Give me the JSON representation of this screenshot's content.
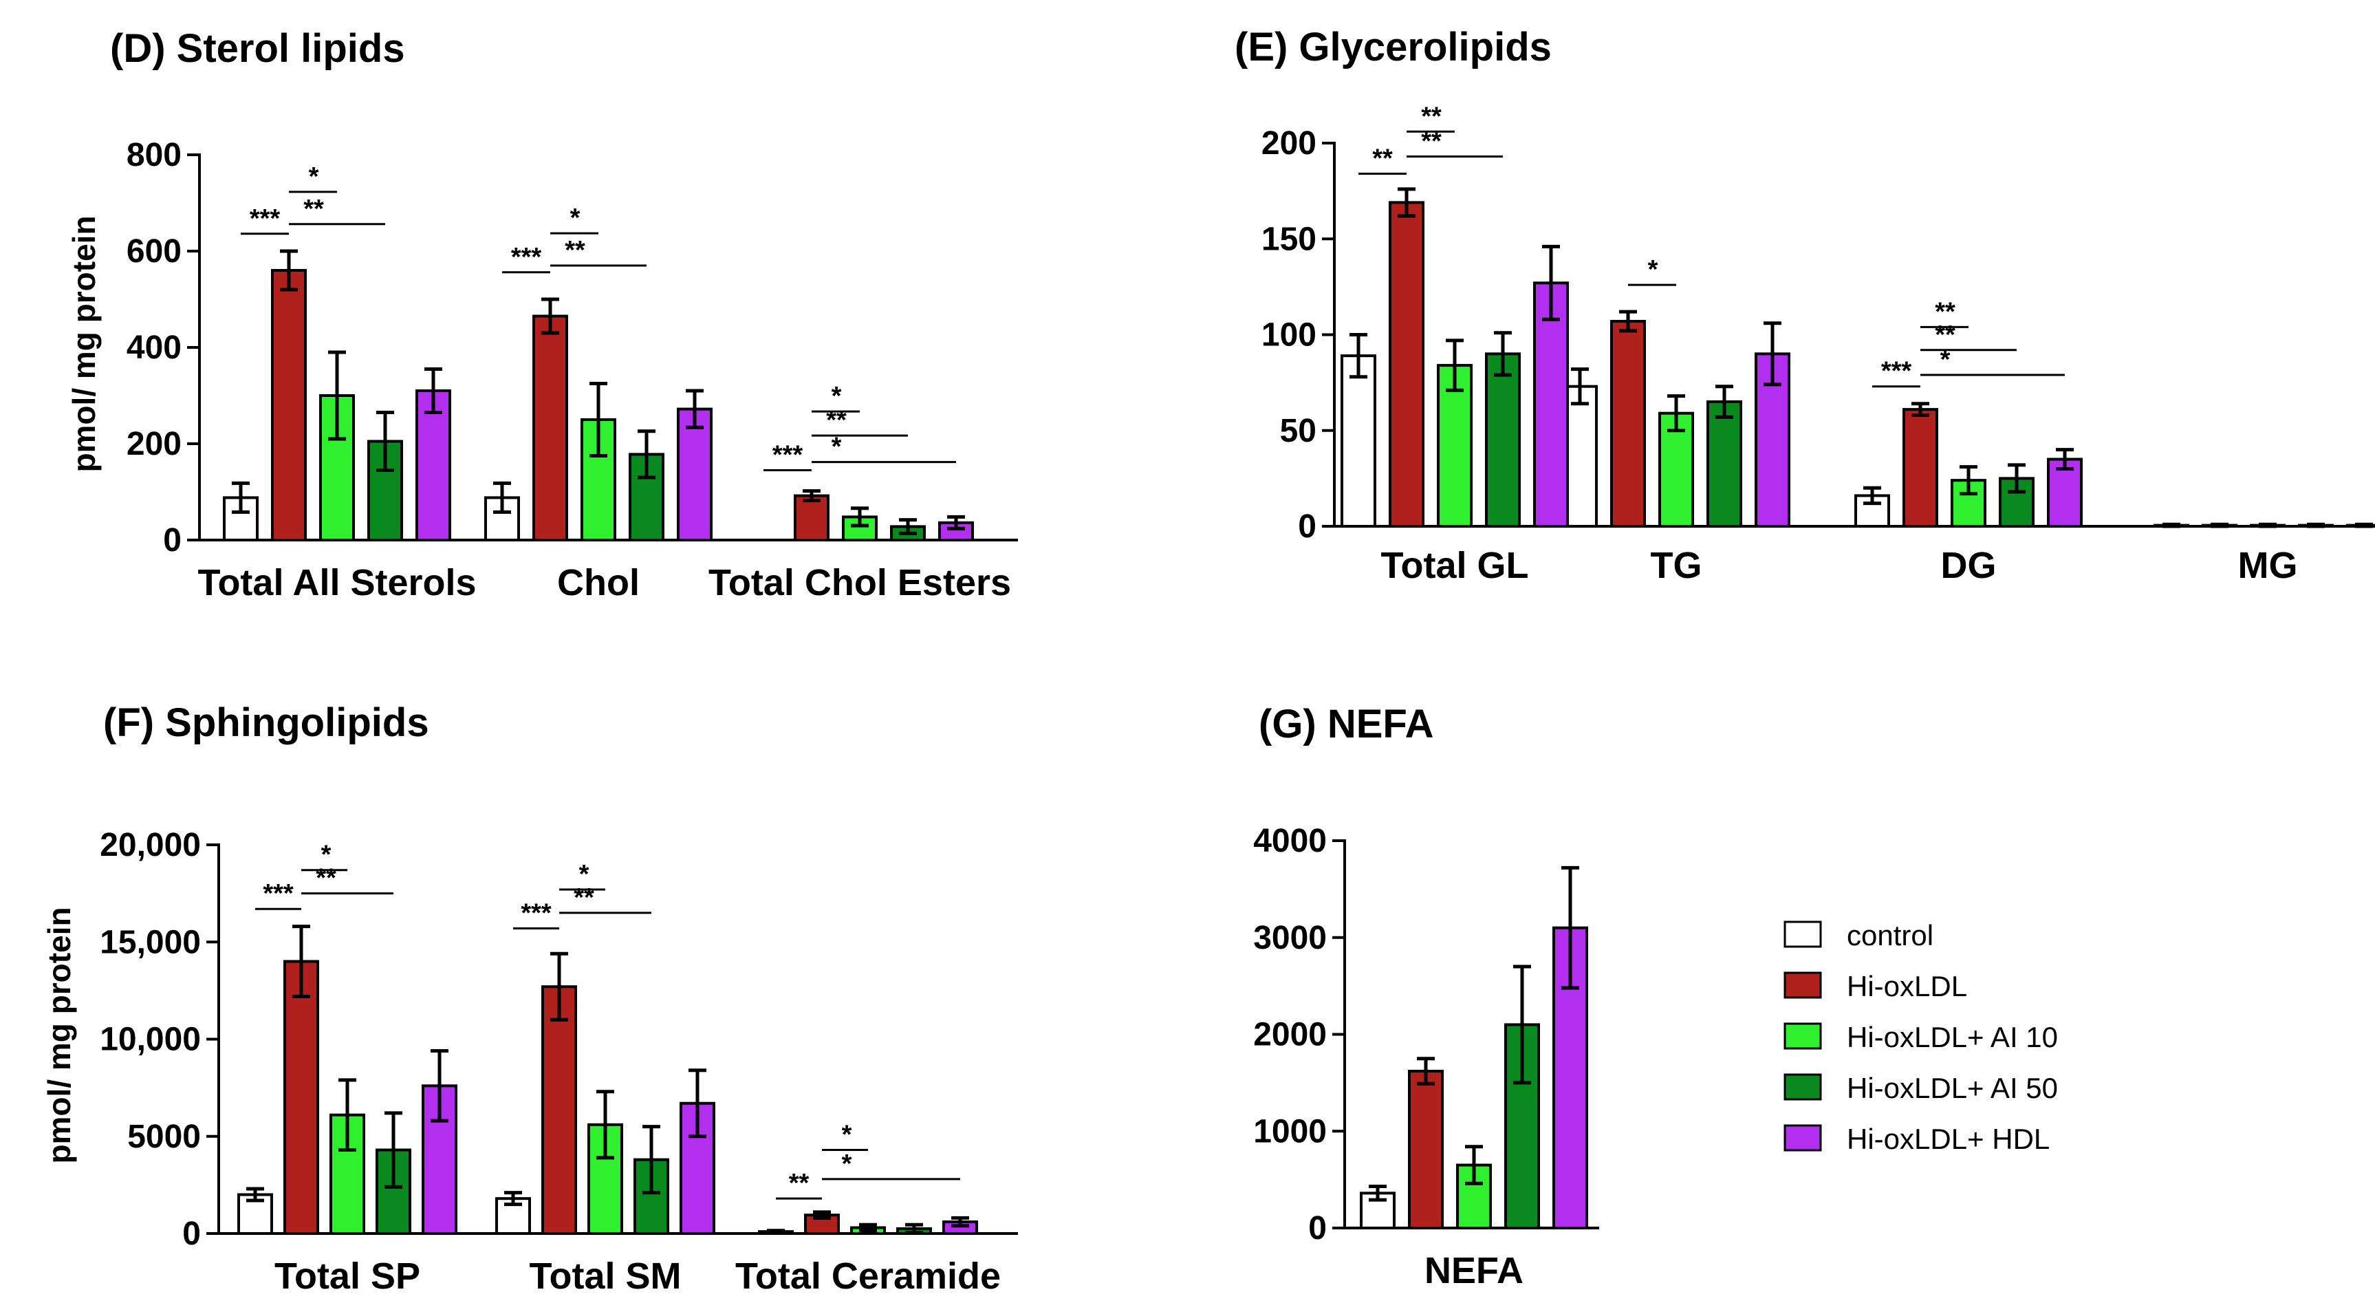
{
  "legend": {
    "items": [
      {
        "label": "control",
        "color": "#ffffff"
      },
      {
        "label": "Hi-oxLDL",
        "color": "#b0211e"
      },
      {
        "label": "Hi-oxLDL+ AI 10",
        "color": "#2ff02f"
      },
      {
        "label": "Hi-oxLDL+ AI 50",
        "color": "#0a8a1e"
      },
      {
        "label": "Hi-oxLDL+ HDL",
        "color": "#b22ff0"
      }
    ]
  },
  "chart_data": [
    {
      "type": "bar",
      "title": "(D) Sterol lipids",
      "ylabel": "pmol/ mg protein",
      "ylim": [
        0,
        800
      ],
      "yticks": [
        "0",
        "200",
        "400",
        "600",
        "800"
      ],
      "categories": [
        "Total All Sterols",
        "Chol",
        "Total Chol Esters"
      ],
      "series": [
        {
          "name": "control",
          "values": [
            88,
            88,
            0
          ],
          "errors": [
            30,
            30,
            0
          ]
        },
        {
          "name": "Hi-oxLDL",
          "values": [
            560,
            465,
            92
          ],
          "errors": [
            40,
            35,
            10
          ]
        },
        {
          "name": "Hi-oxLDL+ AI 10",
          "values": [
            300,
            250,
            48
          ],
          "errors": [
            90,
            75,
            18
          ]
        },
        {
          "name": "Hi-oxLDL+ AI 50",
          "values": [
            205,
            178,
            28
          ],
          "errors": [
            60,
            48,
            14
          ]
        },
        {
          "name": "Hi-oxLDL+ HDL",
          "values": [
            310,
            272,
            36
          ],
          "errors": [
            45,
            38,
            12
          ]
        }
      ],
      "significance": [
        {
          "category": 0,
          "from": 0,
          "to": 1,
          "label": "***",
          "y": 636
        },
        {
          "category": 0,
          "from": 1,
          "to": 2,
          "label": "*",
          "y": 723
        },
        {
          "category": 0,
          "from": 1,
          "to": 3,
          "label": "**",
          "y": 656
        },
        {
          "category": 1,
          "from": 0,
          "to": 1,
          "label": "***",
          "y": 556
        },
        {
          "category": 1,
          "from": 1,
          "to": 2,
          "label": "*",
          "y": 637
        },
        {
          "category": 1,
          "from": 1,
          "to": 3,
          "label": "**",
          "y": 570
        },
        {
          "category": 2,
          "from": 0,
          "to": 1,
          "label": "***",
          "y": 145
        },
        {
          "category": 2,
          "from": 1,
          "to": 2,
          "label": "*",
          "y": 267
        },
        {
          "category": 2,
          "from": 1,
          "to": 3,
          "label": "**",
          "y": 217
        },
        {
          "category": 2,
          "from": 1,
          "to": 4,
          "label": "*",
          "y": 162
        }
      ]
    },
    {
      "type": "bar",
      "title": "(E) Glycerolipids",
      "ylabel": "",
      "ylim": [
        0,
        200
      ],
      "yticks": [
        "0",
        "50",
        "100",
        "150",
        "200"
      ],
      "categories": [
        "Total GL",
        "TG",
        "DG",
        "MG"
      ],
      "series": [
        {
          "name": "control",
          "values": [
            89,
            73,
            16,
            0.5
          ],
          "errors": [
            11,
            9,
            4,
            0.5
          ]
        },
        {
          "name": "Hi-oxLDL",
          "values": [
            169,
            107,
            61,
            0.5
          ],
          "errors": [
            7,
            5,
            3,
            0.5
          ]
        },
        {
          "name": "Hi-oxLDL+ AI 10",
          "values": [
            84,
            59,
            24,
            0.5
          ],
          "errors": [
            13,
            9,
            7,
            0.5
          ]
        },
        {
          "name": "Hi-oxLDL+ AI 50",
          "values": [
            90,
            65,
            25,
            0.5
          ],
          "errors": [
            11,
            8,
            7,
            0.5
          ]
        },
        {
          "name": "Hi-oxLDL+ HDL",
          "values": [
            127,
            90,
            35,
            0.5
          ],
          "errors": [
            19,
            16,
            5,
            0.5
          ]
        }
      ],
      "significance": [
        {
          "category": 0,
          "from": 0,
          "to": 1,
          "label": "**",
          "y": 184
        },
        {
          "category": 0,
          "from": 1,
          "to": 2,
          "label": "**",
          "y": 206
        },
        {
          "category": 0,
          "from": 1,
          "to": 3,
          "label": "**",
          "y": 193
        },
        {
          "category": 1,
          "from": 1,
          "to": 2,
          "label": "*",
          "y": 126
        },
        {
          "category": 2,
          "from": 0,
          "to": 1,
          "label": "***",
          "y": 73
        },
        {
          "category": 2,
          "from": 1,
          "to": 2,
          "label": "**",
          "y": 104
        },
        {
          "category": 2,
          "from": 1,
          "to": 3,
          "label": "**",
          "y": 92
        },
        {
          "category": 2,
          "from": 1,
          "to": 4,
          "label": "*",
          "y": 79
        }
      ]
    },
    {
      "type": "bar",
      "title": "(F) Sphingolipids",
      "ylabel": "pmol/ mg protein",
      "ylim": [
        0,
        20000
      ],
      "yticks": [
        "0",
        "5000",
        "10,000",
        "15,000",
        "20,000"
      ],
      "categories": [
        "Total SP",
        "Total SM",
        "Total Ceramide"
      ],
      "series": [
        {
          "name": "control",
          "values": [
            2000,
            1800,
            100
          ],
          "errors": [
            300,
            300,
            50
          ]
        },
        {
          "name": "Hi-oxLDL",
          "values": [
            14000,
            12700,
            950
          ],
          "errors": [
            1800,
            1700,
            150
          ]
        },
        {
          "name": "Hi-oxLDL+ AI 10",
          "values": [
            6100,
            5600,
            300
          ],
          "errors": [
            1800,
            1700,
            150
          ]
        },
        {
          "name": "Hi-oxLDL+ AI 50",
          "values": [
            4300,
            3800,
            250
          ],
          "errors": [
            1900,
            1700,
            200
          ]
        },
        {
          "name": "Hi-oxLDL+ HDL",
          "values": [
            7600,
            6700,
            600
          ],
          "errors": [
            1800,
            1700,
            200
          ]
        }
      ],
      "significance": [
        {
          "category": 0,
          "from": 0,
          "to": 1,
          "label": "***",
          "y": 16700
        },
        {
          "category": 0,
          "from": 1,
          "to": 2,
          "label": "*",
          "y": 18700
        },
        {
          "category": 0,
          "from": 1,
          "to": 3,
          "label": "**",
          "y": 17500
        },
        {
          "category": 1,
          "from": 0,
          "to": 1,
          "label": "***",
          "y": 15700
        },
        {
          "category": 1,
          "from": 1,
          "to": 2,
          "label": "*",
          "y": 17700
        },
        {
          "category": 1,
          "from": 1,
          "to": 3,
          "label": "**",
          "y": 16500
        },
        {
          "category": 2,
          "from": 0,
          "to": 1,
          "label": "**",
          "y": 1800
        },
        {
          "category": 2,
          "from": 1,
          "to": 2,
          "label": "*",
          "y": 4300
        },
        {
          "category": 2,
          "from": 1,
          "to": 4,
          "label": "*",
          "y": 2800
        }
      ]
    },
    {
      "type": "bar",
      "title": "(G) NEFA",
      "ylabel": "",
      "ylim": [
        0,
        4000
      ],
      "yticks": [
        "0",
        "1000",
        "2000",
        "3000",
        "4000"
      ],
      "categories": [
        "NEFA"
      ],
      "series": [
        {
          "name": "control",
          "values": [
            360
          ],
          "errors": [
            70
          ]
        },
        {
          "name": "Hi-oxLDL",
          "values": [
            1620
          ],
          "errors": [
            130
          ]
        },
        {
          "name": "Hi-oxLDL+ AI 10",
          "values": [
            650
          ],
          "errors": [
            190
          ]
        },
        {
          "name": "Hi-oxLDL+ AI 50",
          "values": [
            2100
          ],
          "errors": [
            600
          ]
        },
        {
          "name": "Hi-oxLDL+ HDL",
          "values": [
            3100
          ],
          "errors": [
            620
          ]
        }
      ],
      "significance": []
    }
  ]
}
